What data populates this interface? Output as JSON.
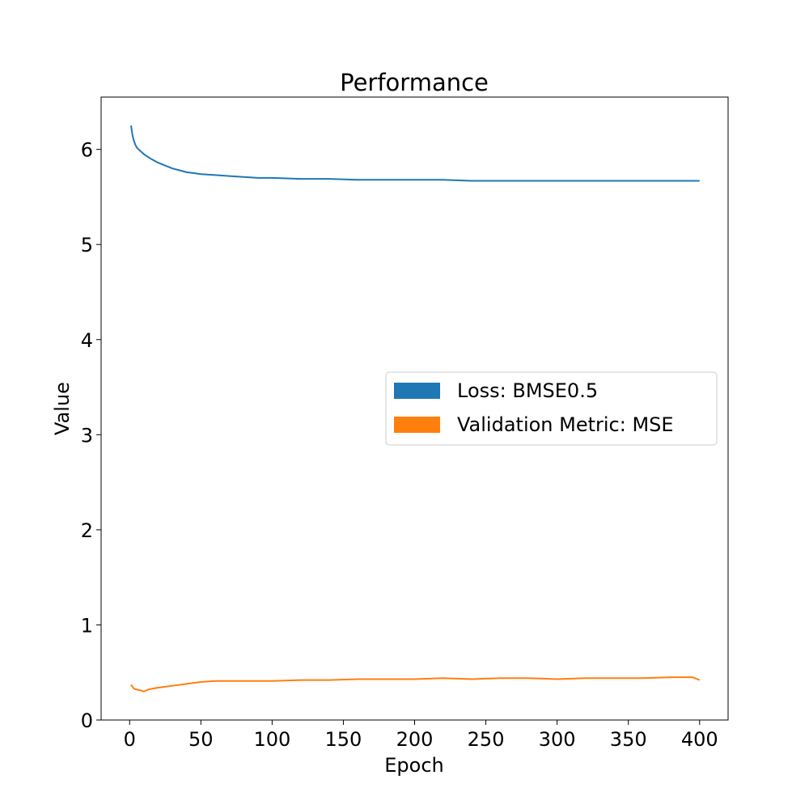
{
  "chart_data": {
    "type": "line",
    "title": "Performance",
    "xlabel": "Epoch",
    "ylabel": "Value",
    "xlim": [
      -20,
      420
    ],
    "ylim": [
      0,
      6.55
    ],
    "xticks": [
      0,
      50,
      100,
      150,
      200,
      250,
      300,
      350,
      400
    ],
    "yticks": [
      0,
      1,
      2,
      3,
      4,
      5,
      6
    ],
    "grid": false,
    "legend_position": "center-right",
    "series": [
      {
        "name": "Loss: BMSE0.5",
        "color": "#1f77b4",
        "x": [
          1,
          2,
          3,
          4,
          5,
          7,
          10,
          15,
          20,
          25,
          30,
          35,
          40,
          45,
          50,
          60,
          70,
          80,
          90,
          100,
          120,
          140,
          160,
          180,
          200,
          220,
          240,
          260,
          280,
          300,
          320,
          340,
          360,
          380,
          400
        ],
        "y": [
          6.25,
          6.15,
          6.09,
          6.05,
          6.02,
          5.99,
          5.95,
          5.9,
          5.86,
          5.83,
          5.8,
          5.78,
          5.76,
          5.75,
          5.74,
          5.73,
          5.72,
          5.71,
          5.7,
          5.7,
          5.69,
          5.69,
          5.68,
          5.68,
          5.68,
          5.68,
          5.67,
          5.67,
          5.67,
          5.67,
          5.67,
          5.67,
          5.67,
          5.67,
          5.67
        ]
      },
      {
        "name": "Validation Metric: MSE",
        "color": "#ff7f0e",
        "x": [
          1,
          3,
          5,
          8,
          10,
          13,
          16,
          20,
          25,
          30,
          35,
          40,
          45,
          50,
          60,
          70,
          80,
          90,
          100,
          120,
          140,
          160,
          180,
          200,
          220,
          240,
          260,
          280,
          300,
          320,
          340,
          360,
          380,
          395,
          400
        ],
        "y": [
          0.37,
          0.33,
          0.32,
          0.31,
          0.3,
          0.32,
          0.33,
          0.34,
          0.35,
          0.36,
          0.37,
          0.38,
          0.39,
          0.4,
          0.41,
          0.41,
          0.41,
          0.41,
          0.41,
          0.42,
          0.42,
          0.43,
          0.43,
          0.43,
          0.44,
          0.43,
          0.44,
          0.44,
          0.43,
          0.44,
          0.44,
          0.44,
          0.45,
          0.45,
          0.42
        ]
      }
    ]
  }
}
